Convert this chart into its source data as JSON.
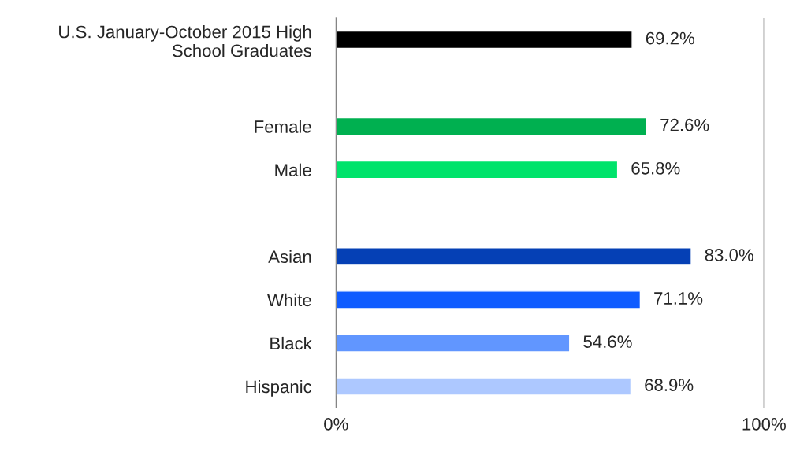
{
  "chart_data": {
    "type": "bar",
    "orientation": "horizontal",
    "categories": [
      "U.S. January-October 2015 High\nSchool Graduates",
      null,
      "Female",
      "Male",
      null,
      "Asian",
      "White",
      "Black",
      "Hispanic"
    ],
    "values": [
      69.2,
      null,
      72.6,
      65.8,
      null,
      83.0,
      71.1,
      54.6,
      68.9
    ],
    "value_labels": [
      "69.2%",
      null,
      "72.6%",
      "65.8%",
      null,
      "83.0%",
      "71.1%",
      "54.6%",
      "68.9%"
    ],
    "colors": [
      "#000000",
      "#ffffff",
      "#00b050",
      "#00e36b",
      "#ffffff",
      "#0540b5",
      "#0f5cff",
      "#6196ff",
      "#adc8ff"
    ],
    "xlim": [
      0,
      100
    ],
    "xticks": [
      {
        "value": 0,
        "label": "0%"
      },
      {
        "value": 100,
        "label": "100%"
      }
    ],
    "grid": "x",
    "legend": false
  }
}
